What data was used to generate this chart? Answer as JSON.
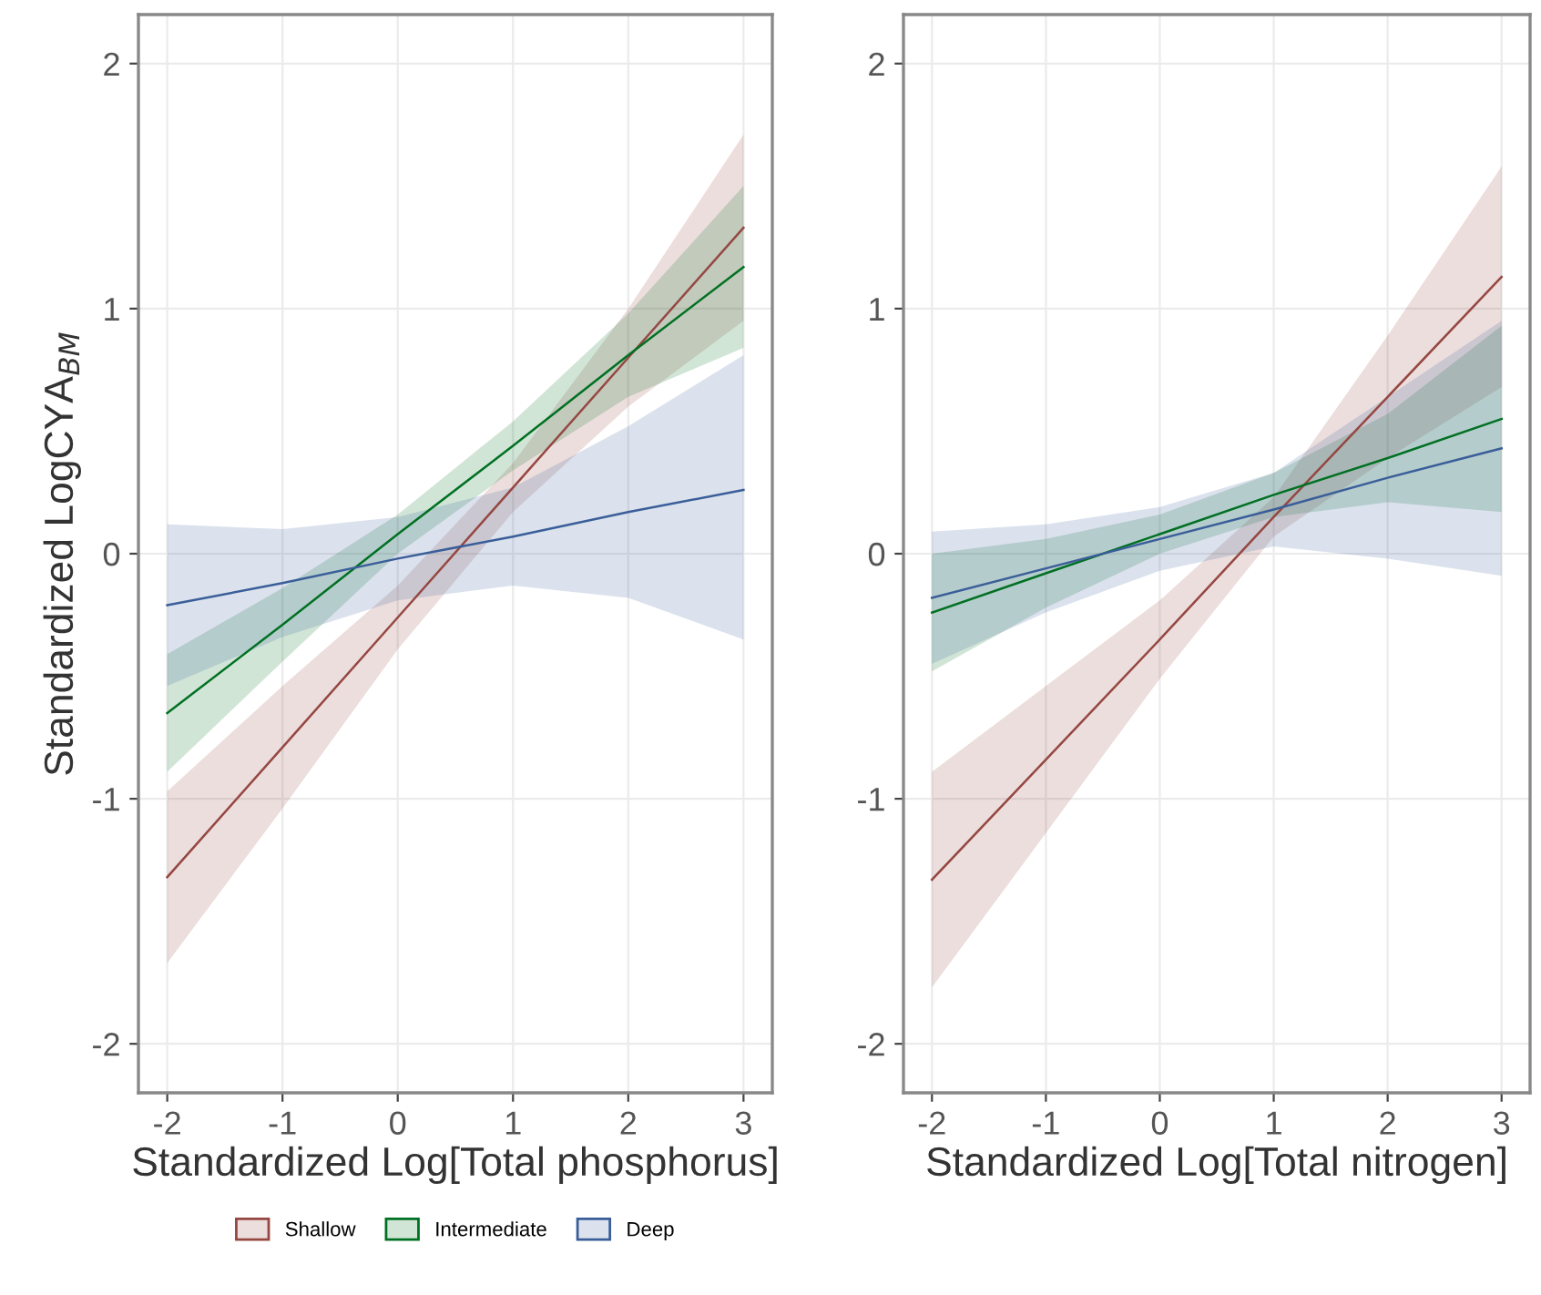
{
  "chart_data": [
    {
      "type": "line",
      "xlabel": "Standardized Log[Total phosphorus]",
      "ylabel": "Standardized LogCYA$_{BM}$",
      "x": [
        -2,
        -1,
        0,
        1,
        2,
        3
      ],
      "xlim": [
        -2.25,
        3.25
      ],
      "ylim": [
        -2.2,
        2.2
      ],
      "xticks": [
        -2,
        -1,
        0,
        1,
        2,
        3
      ],
      "yticks": [
        -2,
        -1,
        0,
        1,
        2
      ],
      "grid": true,
      "legend": "bottom",
      "series": [
        {
          "name": "Shallow",
          "color": "#954741",
          "values": [
            -1.32,
            -0.79,
            -0.26,
            0.27,
            0.8,
            1.33
          ],
          "lower": [
            -1.67,
            -1.04,
            -0.39,
            0.17,
            0.6,
            0.95
          ],
          "upper": [
            -0.97,
            -0.54,
            -0.13,
            0.37,
            1.0,
            1.71
          ]
        },
        {
          "name": "Intermediate",
          "color": "#007022",
          "values": [
            -0.65,
            -0.29,
            0.08,
            0.44,
            0.81,
            1.17
          ],
          "lower": [
            -0.89,
            -0.44,
            0.0,
            0.34,
            0.64,
            0.84
          ],
          "upper": [
            -0.41,
            -0.14,
            0.16,
            0.54,
            0.98,
            1.5
          ]
        },
        {
          "name": "Deep",
          "color": "#3a5e99",
          "values": [
            -0.21,
            -0.12,
            -0.02,
            0.07,
            0.17,
            0.26
          ],
          "lower": [
            -0.54,
            -0.34,
            -0.19,
            -0.13,
            -0.18,
            -0.35
          ],
          "upper": [
            0.12,
            0.1,
            0.15,
            0.27,
            0.52,
            0.81
          ]
        }
      ]
    },
    {
      "type": "line",
      "xlabel": "Standardized Log[Total nitrogen]",
      "x": [
        -2,
        -1,
        0,
        1,
        2,
        3
      ],
      "xlim": [
        -2.25,
        3.25
      ],
      "ylim": [
        -2.2,
        2.2
      ],
      "xticks": [
        -2,
        -1,
        0,
        1,
        2,
        3
      ],
      "yticks": [
        -2,
        -1,
        0,
        1,
        2
      ],
      "grid": true,
      "series": [
        {
          "color": "#954741",
          "values": [
            -1.33,
            -0.84,
            -0.35,
            0.15,
            0.64,
            1.13
          ],
          "lower": [
            -1.77,
            -1.14,
            -0.51,
            0.07,
            0.39,
            0.68
          ],
          "upper": [
            -0.89,
            -0.54,
            -0.19,
            0.23,
            0.89,
            1.58
          ]
        },
        {
          "color": "#007022",
          "values": [
            -0.24,
            -0.08,
            0.08,
            0.24,
            0.39,
            0.55
          ],
          "lower": [
            -0.48,
            -0.22,
            0.0,
            0.15,
            0.21,
            0.17
          ],
          "upper": [
            0.0,
            0.06,
            0.16,
            0.33,
            0.57,
            0.93
          ]
        },
        {
          "color": "#3a5e99",
          "values": [
            -0.18,
            -0.06,
            0.06,
            0.18,
            0.31,
            0.43
          ],
          "lower": [
            -0.45,
            -0.24,
            -0.07,
            0.03,
            -0.02,
            -0.09
          ],
          "upper": [
            0.09,
            0.12,
            0.19,
            0.33,
            0.64,
            0.95
          ]
        }
      ]
    }
  ]
}
